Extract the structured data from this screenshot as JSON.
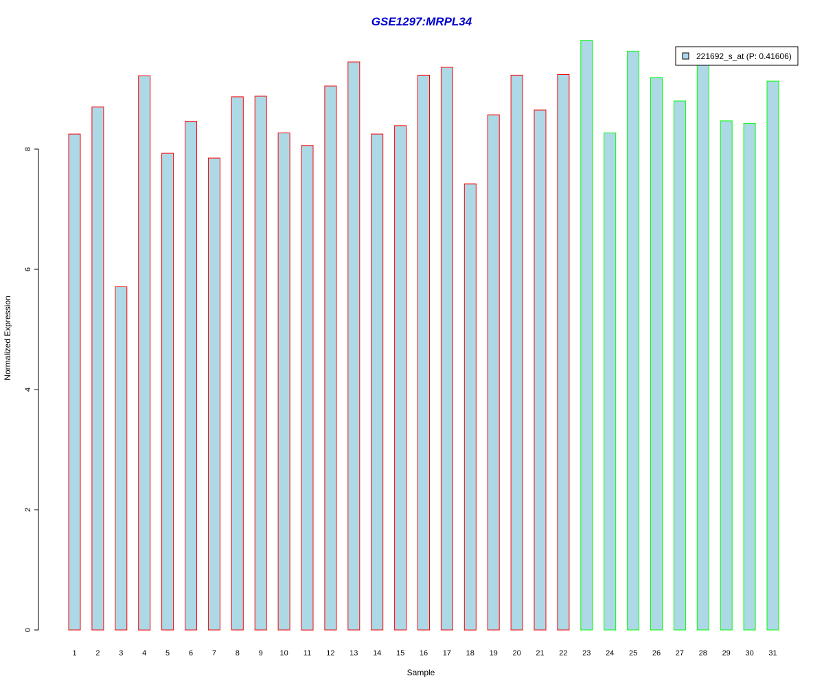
{
  "chart_data": {
    "type": "bar",
    "title": "GSE1297:MRPL34",
    "xlabel": "Sample",
    "ylabel": "Normalized Expression",
    "categories": [
      "1",
      "2",
      "3",
      "4",
      "5",
      "6",
      "7",
      "8",
      "9",
      "10",
      "11",
      "12",
      "13",
      "14",
      "15",
      "16",
      "17",
      "18",
      "19",
      "20",
      "21",
      "22",
      "23",
      "24",
      "25",
      "26",
      "27",
      "28",
      "29",
      "30",
      "31"
    ],
    "series": [
      {
        "name": "221692_s_at (P: 0.41606)",
        "values": [
          8.25,
          8.7,
          5.71,
          9.22,
          7.93,
          8.46,
          7.85,
          8.87,
          8.88,
          8.27,
          8.06,
          9.05,
          9.45,
          8.25,
          8.39,
          9.23,
          9.36,
          7.42,
          8.57,
          9.23,
          8.65,
          9.24,
          9.81,
          8.27,
          9.63,
          9.19,
          8.8,
          9.6,
          8.47,
          8.43,
          9.13
        ]
      }
    ],
    "groups": [
      1,
      1,
      1,
      1,
      1,
      1,
      1,
      1,
      1,
      1,
      1,
      1,
      1,
      1,
      1,
      1,
      1,
      1,
      1,
      1,
      1,
      1,
      2,
      2,
      2,
      2,
      2,
      2,
      2,
      2,
      2
    ],
    "ylim": [
      0,
      10
    ],
    "yticks": [
      0,
      2,
      4,
      6,
      8
    ],
    "grid": false,
    "legend_position": "top-right",
    "colors": {
      "bar_fill": "#add8e6",
      "group1_border": "#ff0000",
      "group2_border": "#00ff00",
      "title": "#0000cc"
    }
  }
}
